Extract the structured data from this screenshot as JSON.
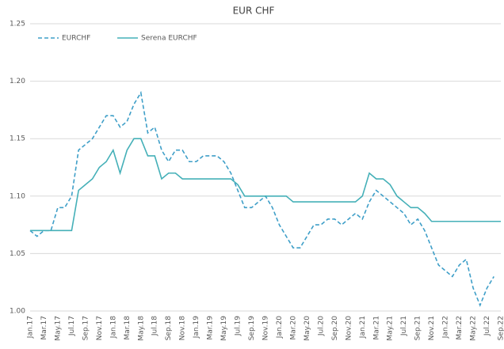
{
  "chart_data": {
    "type": "line",
    "title": "EUR CHF",
    "categories": [
      "Jan.17",
      null,
      "Mar.17",
      null,
      "May.17",
      null,
      "Jul.17",
      null,
      "Sep.17",
      null,
      "Nov.17",
      null,
      "Jan.18",
      null,
      "Mar.18",
      null,
      "May.18",
      null,
      "Jul.18",
      null,
      "Sep.18",
      null,
      "Nov.18",
      null,
      "Jan.19",
      null,
      "Mar.19",
      null,
      "May.19",
      null,
      "Jul.19",
      null,
      "Sep.19",
      null,
      "Nov.19",
      null,
      "Jan.20",
      null,
      "Mar.20",
      null,
      "May.20",
      null,
      "Jul.20",
      null,
      "Sep.20",
      null,
      "Nov.20",
      null,
      "Jan.21",
      null,
      "Mar.21",
      null,
      "May.21",
      null,
      "Jul.21",
      null,
      "Sep.21",
      null,
      "Nov.21",
      null,
      "Jan.22",
      null,
      "Mar.22",
      null,
      "May.22",
      null,
      "Jul.22",
      null,
      "Sep.22"
    ],
    "series": [
      {
        "name": "EURCHF",
        "color": "#3f9fc8",
        "dashed": true,
        "values": [
          1.07,
          1.065,
          1.07,
          1.07,
          1.09,
          1.09,
          1.1,
          1.14,
          1.145,
          1.15,
          1.16,
          1.17,
          1.17,
          1.16,
          1.165,
          1.18,
          1.19,
          1.155,
          1.16,
          1.14,
          1.13,
          1.14,
          1.14,
          1.13,
          1.13,
          1.135,
          1.135,
          1.135,
          1.13,
          1.12,
          1.105,
          1.09,
          1.09,
          1.095,
          1.1,
          1.09,
          1.075,
          1.065,
          1.055,
          1.055,
          1.065,
          1.075,
          1.075,
          1.08,
          1.08,
          1.075,
          1.08,
          1.085,
          1.08,
          1.095,
          1.105,
          1.1,
          1.095,
          1.09,
          1.085,
          1.075,
          1.08,
          1.07,
          1.055,
          1.04,
          1.035,
          1.03,
          1.04,
          1.045,
          1.02,
          1.005,
          1.02,
          1.03,
          null
        ]
      },
      {
        "name": "Serena EURCHF",
        "color": "#45b0b8",
        "dashed": false,
        "values": [
          1.07,
          1.07,
          1.07,
          1.07,
          1.07,
          1.07,
          1.07,
          1.105,
          1.11,
          1.115,
          1.125,
          1.13,
          1.14,
          1.12,
          1.14,
          1.15,
          1.15,
          1.135,
          1.135,
          1.115,
          1.12,
          1.12,
          1.115,
          1.115,
          1.115,
          1.115,
          1.115,
          1.115,
          1.115,
          1.115,
          1.11,
          1.1,
          1.1,
          1.1,
          1.1,
          1.1,
          1.1,
          1.1,
          1.095,
          1.095,
          1.095,
          1.095,
          1.095,
          1.095,
          1.095,
          1.095,
          1.095,
          1.095,
          1.1,
          1.12,
          1.115,
          1.115,
          1.11,
          1.1,
          1.095,
          1.09,
          1.09,
          1.085,
          1.078,
          1.078,
          1.078,
          1.078,
          1.078,
          1.078,
          1.078,
          1.078,
          1.078,
          1.078,
          1.078
        ]
      }
    ],
    "ylim": [
      1,
      1.25
    ],
    "yticks": [
      {
        "value": 1,
        "label": "1.00"
      },
      1.05,
      {
        "value": 1.1,
        "label": "1.10"
      },
      1.15,
      {
        "value": 1.2,
        "label": "1.20"
      },
      1.25
    ],
    "grid": true,
    "legend": "top-left"
  }
}
